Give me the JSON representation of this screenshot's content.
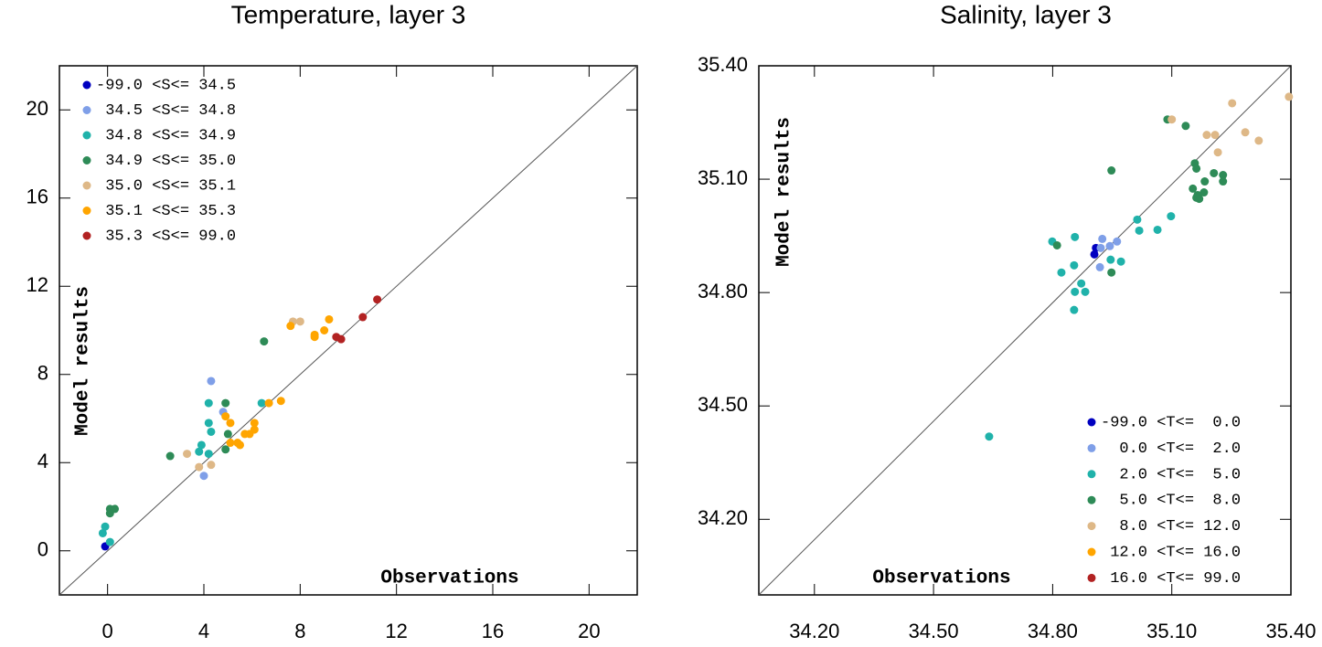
{
  "chart_data": [
    {
      "type": "scatter",
      "title": "Temperature, layer 3",
      "xlabel": "Observations",
      "ylabel": "Model results",
      "xlim": [
        -2,
        22
      ],
      "ylim": [
        -2,
        22
      ],
      "xticks": [
        0,
        4,
        8,
        12,
        16,
        20
      ],
      "yticks": [
        0,
        4,
        8,
        12,
        16,
        20
      ],
      "legend_position": "upper left",
      "series": [
        {
          "name": "-99.0 <S<= 34.5",
          "color": "#0000c0",
          "x": [
            -0.1
          ],
          "values": [
            0.2
          ]
        },
        {
          "name": " 34.5 <S<= 34.8",
          "color": "#7f9fe8",
          "x": [
            4.3,
            4.8,
            4.0
          ],
          "values": [
            7.7,
            6.3,
            3.4
          ]
        },
        {
          "name": " 34.8 <S<= 34.9",
          "color": "#20b2aa",
          "x": [
            4.2,
            4.2,
            4.3,
            4.2,
            3.9,
            3.8,
            6.4,
            -0.1,
            -0.2,
            0.1
          ],
          "values": [
            6.7,
            5.8,
            5.4,
            4.4,
            4.8,
            4.5,
            6.7,
            1.1,
            0.8,
            0.4
          ]
        },
        {
          "name": " 34.9 <S<= 35.0",
          "color": "#2e8b57",
          "x": [
            6.5,
            4.9,
            5.0,
            4.9,
            2.6,
            0.1,
            0.3,
            0.1
          ],
          "values": [
            9.5,
            6.7,
            5.3,
            4.6,
            4.3,
            1.9,
            1.9,
            1.7
          ]
        },
        {
          "name": " 35.0 <S<= 35.1",
          "color": "#deb887",
          "x": [
            7.7,
            8.0,
            3.3,
            3.8,
            4.3
          ],
          "values": [
            10.4,
            10.4,
            4.4,
            3.8,
            3.9
          ]
        },
        {
          "name": " 35.1 <S<= 35.3",
          "color": "#ffa500",
          "x": [
            7.6,
            9.2,
            9.0,
            8.6,
            8.6,
            4.9,
            5.1,
            6.1,
            6.1,
            5.9,
            5.7,
            5.4,
            5.5,
            5.1,
            6.7,
            7.2
          ],
          "values": [
            10.2,
            10.5,
            10.0,
            9.8,
            9.7,
            6.1,
            5.8,
            5.8,
            5.5,
            5.3,
            5.3,
            4.9,
            4.8,
            4.9,
            6.7,
            6.8
          ]
        },
        {
          "name": " 35.3 <S<= 99.0",
          "color": "#b22222",
          "x": [
            11.2,
            10.6,
            9.5,
            9.7
          ],
          "values": [
            11.4,
            10.6,
            9.7,
            9.6
          ]
        }
      ]
    },
    {
      "type": "scatter",
      "title": "Salinity, layer 3",
      "xlabel": "Observations",
      "ylabel": "Model results",
      "xlim": [
        34.06,
        35.4
      ],
      "ylim": [
        34.0,
        35.4
      ],
      "xticks": [
        {
          "value": 34.2,
          "label": "34.20"
        },
        {
          "value": 34.5,
          "label": "34.50"
        },
        {
          "value": 34.8,
          "label": "34.80"
        },
        {
          "value": 35.1,
          "label": "35.10"
        },
        {
          "value": 35.4,
          "label": "35.40"
        }
      ],
      "yticks": [
        {
          "value": 34.2,
          "label": "34.20"
        },
        {
          "value": 34.5,
          "label": "34.50"
        },
        {
          "value": 34.8,
          "label": "34.80"
        },
        {
          "value": 35.1,
          "label": "35.10"
        },
        {
          "value": 35.4,
          "label": "35.40"
        }
      ],
      "legend_position": "lower right",
      "series": [
        {
          "name": "-99.0 <T<=  0.0",
          "color": "#0000c0",
          "x": [
            34.905,
            34.909
          ],
          "values": [
            34.901,
            34.918
          ]
        },
        {
          "name": "  0.0 <T<=  2.0",
          "color": "#7f9fe8",
          "x": [
            34.925,
            34.921,
            34.944,
            34.962,
            34.919
          ],
          "values": [
            34.942,
            34.918,
            34.923,
            34.935,
            34.867
          ]
        },
        {
          "name": "  2.0 <T<=  5.0",
          "color": "#20b2aa",
          "x": [
            34.799,
            34.856,
            34.822,
            34.854,
            34.946,
            34.972,
            34.872,
            34.856,
            34.882,
            34.854,
            35.013,
            35.018,
            35.064,
            35.098,
            34.64
          ],
          "values": [
            34.935,
            34.947,
            34.853,
            34.872,
            34.887,
            34.882,
            34.824,
            34.802,
            34.802,
            34.754,
            34.993,
            34.964,
            34.966,
            35.002,
            34.419
          ]
        },
        {
          "name": "  5.0 <T<=  8.0",
          "color": "#2e8b57",
          "x": [
            34.811,
            34.948,
            34.948,
            35.089,
            35.135,
            35.158,
            35.162,
            35.153,
            35.165,
            35.181,
            35.169,
            35.162,
            35.183,
            35.206,
            35.229,
            35.229
          ],
          "values": [
            34.925,
            34.853,
            35.123,
            35.258,
            35.241,
            35.142,
            35.128,
            35.075,
            35.058,
            35.065,
            35.048,
            35.051,
            35.094,
            35.116,
            35.111,
            35.094
          ]
        },
        {
          "name": "  8.0 <T<= 12.0",
          "color": "#deb887",
          "x": [
            35.1,
            35.188,
            35.209,
            35.216,
            35.252,
            35.285,
            35.319,
            35.395
          ],
          "values": [
            35.258,
            35.217,
            35.217,
            35.171,
            35.301,
            35.224,
            35.202,
            35.318
          ]
        },
        {
          "name": " 12.0 <T<= 16.0",
          "color": "#ffa500",
          "x": [],
          "values": []
        },
        {
          "name": " 16.0 <T<= 99.0",
          "color": "#b22222",
          "x": [],
          "values": []
        }
      ]
    }
  ]
}
